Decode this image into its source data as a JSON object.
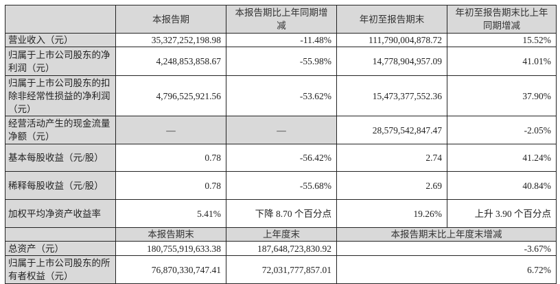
{
  "header": [
    "",
    "本报告期",
    "本报告期比上年同期增减",
    "年初至报告期末",
    "年初至报告期末比上年同期增减"
  ],
  "rows": [
    {
      "label": "营业收入（元）",
      "cur": "35,327,252,198.98",
      "cur_chg": "-11.48%",
      "ytd": "111,790,004,878.72",
      "ytd_chg": "15.52%"
    },
    {
      "label": "归属于上市公司股东的净利润（元）",
      "cur": "4,248,853,858.67",
      "cur_chg": "-55.98%",
      "ytd": "14,778,904,957.09",
      "ytd_chg": "41.01%"
    },
    {
      "label": "归属于上市公司股东的扣除非经常性损益的净利润（元）",
      "cur": "4,796,525,921.56",
      "cur_chg": "-53.62%",
      "ytd": "15,473,377,552.36",
      "ytd_chg": "37.90%"
    },
    {
      "label": "经营活动产生的现金流量净额（元）",
      "cur": "—",
      "cur_chg": "—",
      "ytd": "28,579,542,847.47",
      "ytd_chg": "-2.05%"
    },
    {
      "label": "基本每股收益（元/股）",
      "cur": "0.78",
      "cur_chg": "-56.42%",
      "ytd": "2.74",
      "ytd_chg": "41.24%"
    },
    {
      "label": "稀释每股收益（元/股）",
      "cur": "0.78",
      "cur_chg": "-55.68%",
      "ytd": "2.69",
      "ytd_chg": "40.84%"
    },
    {
      "label": "加权平均净资产收益率",
      "cur": "5.41%",
      "cur_chg": "下降 8.70 个百分点",
      "ytd": "19.26%",
      "ytd_chg": "上升 3.90 个百分点"
    }
  ],
  "sub_header": [
    "",
    "本报告期末",
    "上年度末",
    "本报告期末比上年度末增减"
  ],
  "balance_rows": [
    {
      "label": "总资产（元）",
      "end": "180,755,919,633.38",
      "prev": "187,648,723,830.92",
      "chg": "-3.67%"
    },
    {
      "label": "归属于上市公司股东的所有者权益（元）",
      "end": "76,870,330,747.41",
      "prev": "72,031,777,857.01",
      "chg": "6.72%"
    }
  ]
}
